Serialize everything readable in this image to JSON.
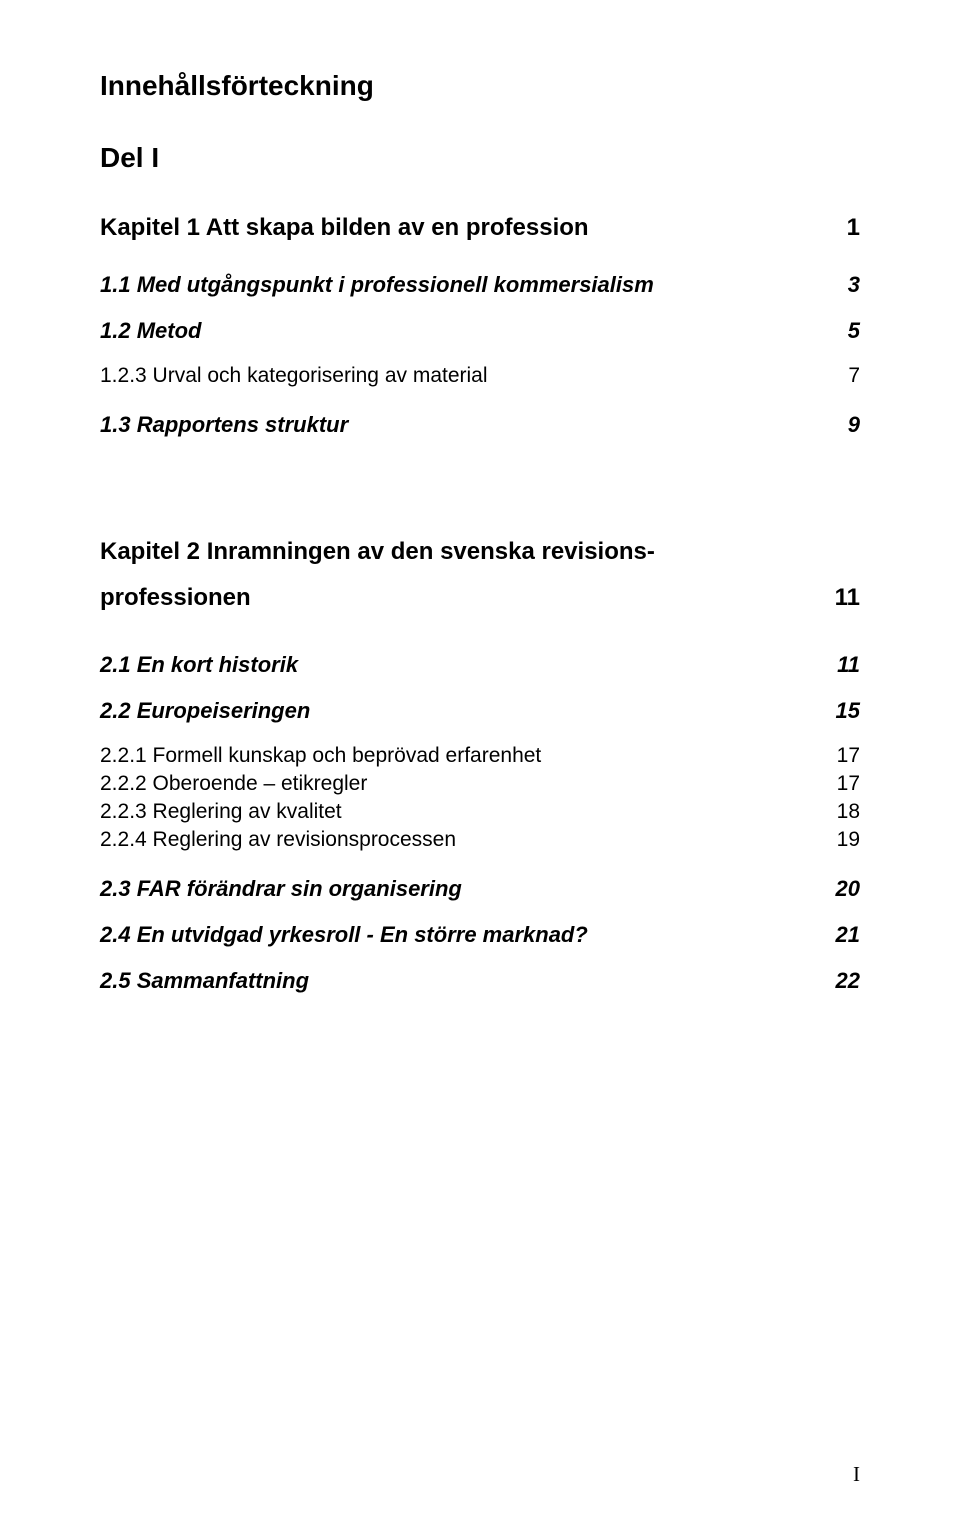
{
  "title": "Innehållsförteckning",
  "part": "Del I",
  "chapter1": {
    "heading": "Kapitel 1 Att skapa bilden av en profession",
    "page": "1",
    "s1_1": {
      "label": "1.1 Med utgångspunkt i professionell kommersialism",
      "page": "3"
    },
    "s1_2": {
      "label": "1.2 Metod",
      "page": "5"
    },
    "s1_2_3": {
      "label": "1.2.3 Urval och kategorisering av material",
      "page": "7"
    },
    "s1_3": {
      "label": "1.3 Rapportens struktur",
      "page": "9"
    }
  },
  "chapter2": {
    "heading_line1": "Kapitel 2 Inramningen av den svenska revisions-",
    "heading_line2": "professionen",
    "page": "11",
    "s2_1": {
      "label": "2.1 En kort historik",
      "page": "11"
    },
    "s2_2": {
      "label": "2.2 Europeiseringen",
      "page": "15"
    },
    "s2_2_1": {
      "label": "2.2.1 Formell kunskap och beprövad erfarenhet",
      "page": "17"
    },
    "s2_2_2": {
      "label": "2.2.2 Oberoende – etikregler",
      "page": "17"
    },
    "s2_2_3": {
      "label": "2.2.3 Reglering av kvalitet",
      "page": "18"
    },
    "s2_2_4": {
      "label": "2.2.4 Reglering av revisionsprocessen",
      "page": "19"
    },
    "s2_3": {
      "label": "2.3 FAR förändrar sin organisering",
      "page": "20"
    },
    "s2_4": {
      "label": "2.4 En utvidgad yrkesroll - En större marknad?",
      "page": "21"
    },
    "s2_5": {
      "label": "2.5 Sammanfattning",
      "page": "22"
    }
  },
  "footer_page_number": "I"
}
